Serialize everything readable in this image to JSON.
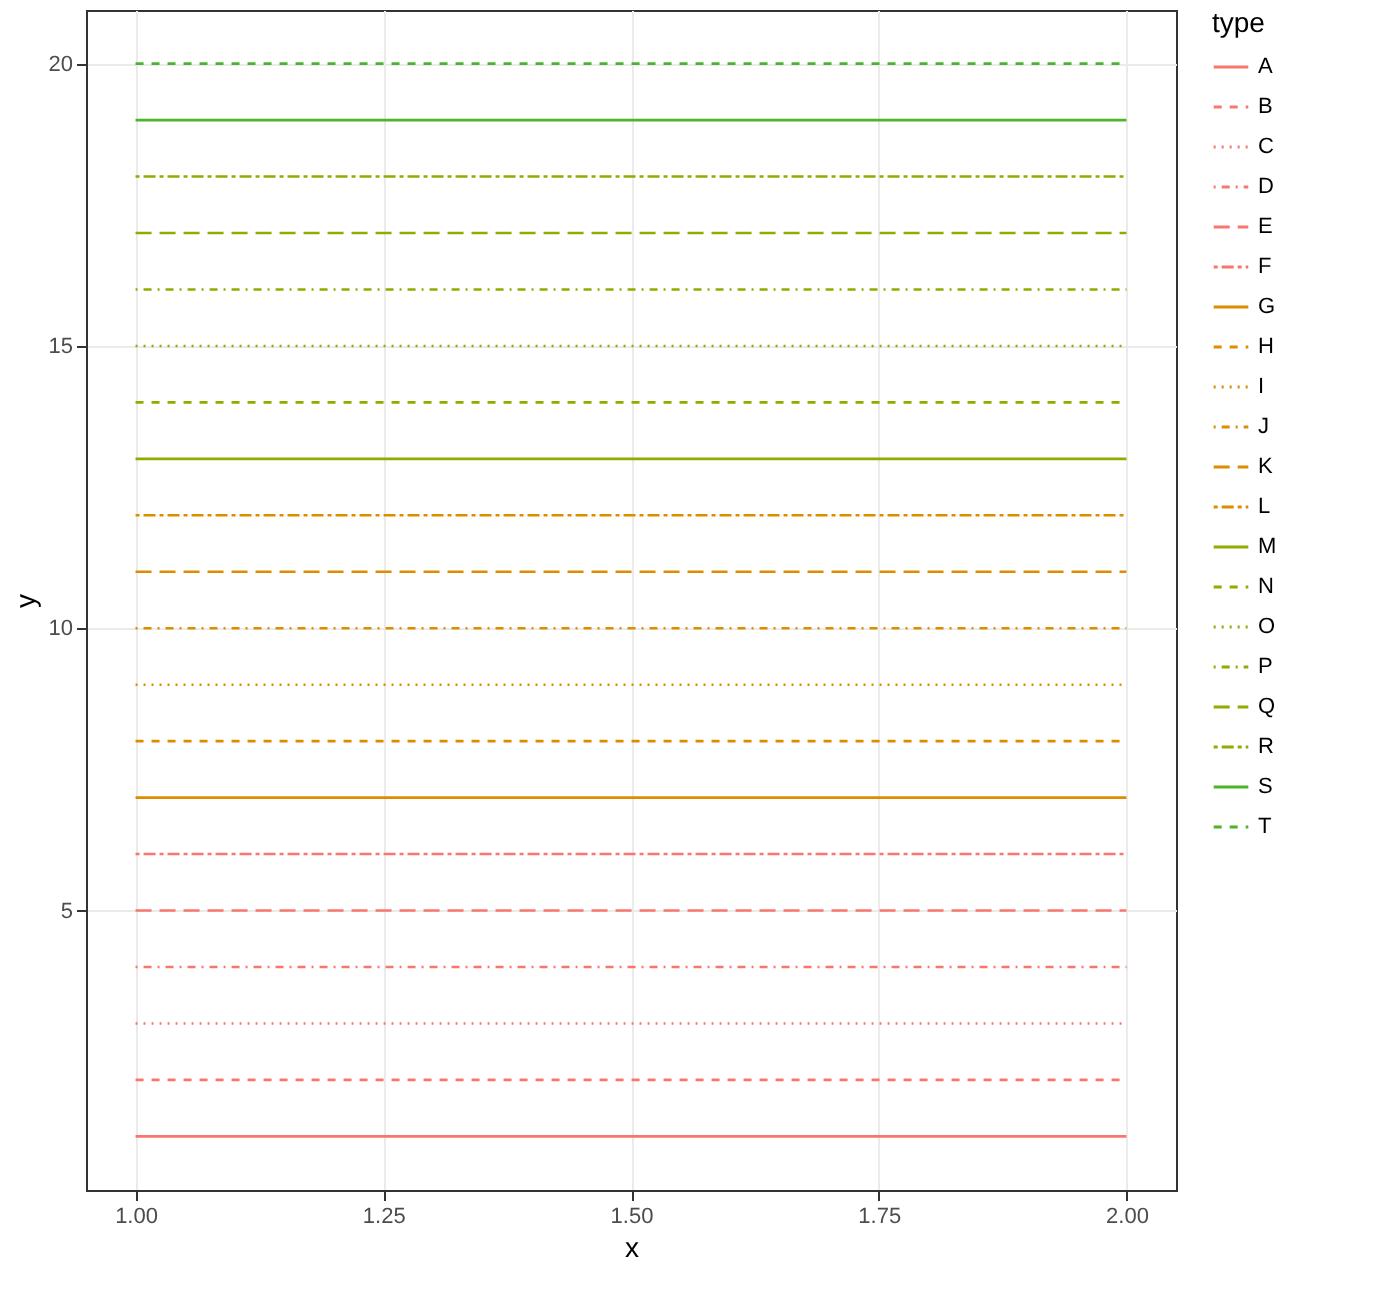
{
  "chart_data": {
    "type": "line",
    "xlabel": "x",
    "ylabel": "y",
    "legend_title": "type",
    "legend": "right",
    "grid": true,
    "x": [
      1,
      2
    ],
    "xlim": [
      0.95,
      2.05
    ],
    "ylim": [
      0.05,
      20.95
    ],
    "xticks": [
      {
        "value": 1,
        "label": "1.00"
      },
      {
        "value": 1.25,
        "label": "1.25"
      },
      {
        "value": 1.5,
        "label": "1.50"
      },
      {
        "value": 1.75,
        "label": "1.75"
      },
      {
        "value": 2,
        "label": "2.00"
      }
    ],
    "yticks": [
      5,
      10,
      15,
      20
    ],
    "series": [
      {
        "name": "A",
        "color": "#f8766d",
        "values": [
          1,
          1
        ],
        "line_style": "solid"
      },
      {
        "name": "B",
        "color": "#f8766d",
        "values": [
          2,
          2
        ],
        "line_style": "dashed"
      },
      {
        "name": "C",
        "color": "#f8766d",
        "values": [
          3,
          3
        ],
        "line_style": "dotted"
      },
      {
        "name": "D",
        "color": "#f8766d",
        "values": [
          4,
          4
        ],
        "line_style": "dotdash"
      },
      {
        "name": "E",
        "color": "#f8766d",
        "values": [
          5,
          5
        ],
        "line_style": "longdash"
      },
      {
        "name": "F",
        "color": "#f8766d",
        "values": [
          6,
          6
        ],
        "line_style": "twodash"
      },
      {
        "name": "G",
        "color": "#de8c00",
        "values": [
          7,
          7
        ],
        "line_style": "solid"
      },
      {
        "name": "H",
        "color": "#de8c00",
        "values": [
          8,
          8
        ],
        "line_style": "dashed"
      },
      {
        "name": "I",
        "color": "#de8c00",
        "values": [
          9,
          9
        ],
        "line_style": "dotted"
      },
      {
        "name": "J",
        "color": "#de8c00",
        "values": [
          10,
          10
        ],
        "line_style": "dotdash"
      },
      {
        "name": "K",
        "color": "#de8c00",
        "values": [
          11,
          11
        ],
        "line_style": "longdash"
      },
      {
        "name": "L",
        "color": "#de8c00",
        "values": [
          12,
          12
        ],
        "line_style": "twodash"
      },
      {
        "name": "M",
        "color": "#93aa00",
        "values": [
          13,
          13
        ],
        "line_style": "solid"
      },
      {
        "name": "N",
        "color": "#93aa00",
        "values": [
          14,
          14
        ],
        "line_style": "dashed"
      },
      {
        "name": "O",
        "color": "#93aa00",
        "values": [
          15,
          15
        ],
        "line_style": "dotted"
      },
      {
        "name": "P",
        "color": "#93aa00",
        "values": [
          16,
          16
        ],
        "line_style": "dotdash"
      },
      {
        "name": "Q",
        "color": "#93aa00",
        "values": [
          17,
          17
        ],
        "line_style": "longdash"
      },
      {
        "name": "R",
        "color": "#93aa00",
        "values": [
          18,
          18
        ],
        "line_style": "twodash"
      },
      {
        "name": "S",
        "color": "#4db32a",
        "values": [
          19,
          19
        ],
        "line_style": "solid"
      },
      {
        "name": "T",
        "color": "#4db32a",
        "values": [
          20,
          20
        ],
        "line_style": "dashed"
      }
    ]
  }
}
